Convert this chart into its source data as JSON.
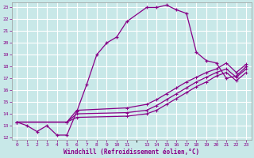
{
  "xlabel": "Windchill (Refroidissement éolien,°C)",
  "bg_color": "#c8e8e8",
  "grid_color": "#ffffff",
  "line_color": "#880088",
  "xlim": [
    -0.5,
    23.5
  ],
  "ylim": [
    11.8,
    23.4
  ],
  "xticks": [
    0,
    1,
    2,
    3,
    4,
    5,
    6,
    7,
    8,
    9,
    10,
    11,
    13,
    14,
    15,
    16,
    17,
    18,
    19,
    20,
    21,
    22,
    23
  ],
  "yticks": [
    12,
    13,
    14,
    15,
    16,
    17,
    18,
    19,
    20,
    21,
    22,
    23
  ],
  "line1_x": [
    0,
    1,
    2,
    3,
    4,
    5,
    6,
    7,
    8,
    9,
    10,
    11,
    13,
    14,
    15,
    16,
    17,
    18,
    19,
    20,
    21,
    22,
    23
  ],
  "line1_y": [
    13.3,
    13.0,
    12.5,
    13.0,
    12.2,
    12.2,
    14.2,
    16.5,
    19.0,
    20.0,
    20.5,
    21.8,
    23.0,
    23.0,
    23.2,
    22.8,
    22.5,
    19.2,
    18.5,
    18.3,
    17.0,
    17.2,
    18.0
  ],
  "line2_x": [
    0,
    5,
    6,
    11,
    13,
    14,
    15,
    16,
    17,
    18,
    19,
    20,
    21,
    22,
    23
  ],
  "line2_y": [
    13.3,
    13.3,
    14.3,
    14.5,
    14.8,
    15.2,
    15.7,
    16.2,
    16.7,
    17.1,
    17.5,
    17.8,
    18.3,
    17.5,
    18.2
  ],
  "line3_x": [
    0,
    5,
    6,
    11,
    13,
    14,
    15,
    16,
    17,
    18,
    19,
    20,
    21,
    22,
    23
  ],
  "line3_y": [
    13.3,
    13.3,
    14.0,
    14.1,
    14.3,
    14.7,
    15.2,
    15.7,
    16.2,
    16.7,
    17.1,
    17.5,
    17.8,
    17.1,
    17.8
  ],
  "line4_x": [
    0,
    5,
    6,
    11,
    13,
    14,
    15,
    16,
    17,
    18,
    19,
    20,
    21,
    22,
    23
  ],
  "line4_y": [
    13.3,
    13.3,
    13.7,
    13.8,
    14.0,
    14.3,
    14.8,
    15.3,
    15.8,
    16.3,
    16.7,
    17.2,
    17.5,
    16.8,
    17.5
  ]
}
